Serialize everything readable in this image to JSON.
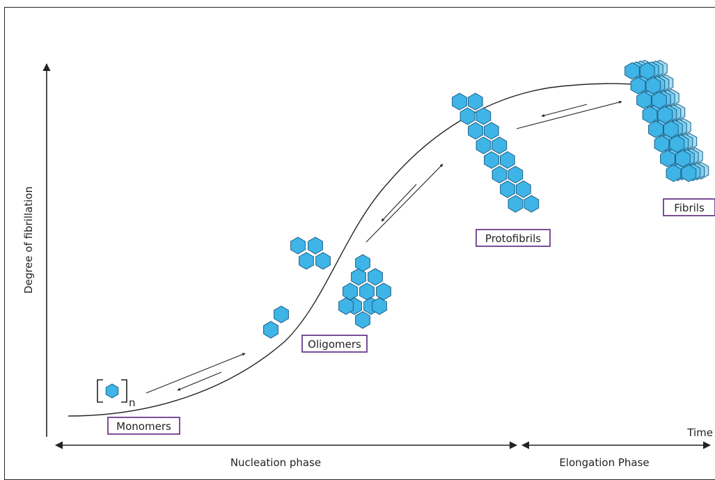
{
  "diagram": {
    "y_axis_label": "Degree of fibrillation",
    "x_axis_label": "Time",
    "phases": {
      "nucleation": "Nucleation phase",
      "elongation": "Elongation Phase"
    },
    "stages": {
      "monomers": "Monomers",
      "oligomers": "Oligomers",
      "protofibrils": "Protofibrils",
      "fibrils": "Fibrils"
    },
    "monomer_subscript": "n",
    "colors": {
      "hexagon_fill": "#3fb4e6",
      "hexagon_stroke": "#1b5f86",
      "box_border": "#6b3a8c",
      "line": "#222222"
    }
  }
}
